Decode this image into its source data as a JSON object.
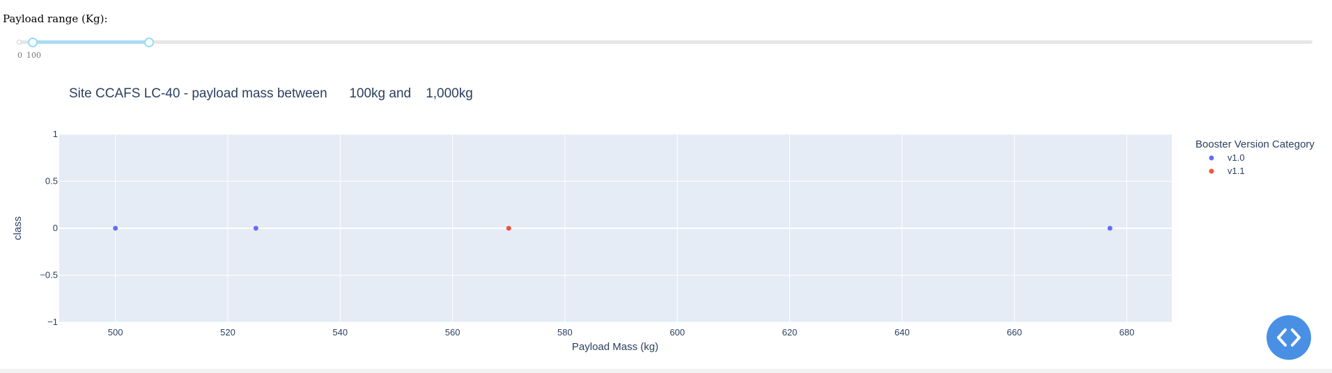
{
  "slider": {
    "label": "Payload range (Kg):",
    "marks": [
      "0",
      "100"
    ],
    "range": {
      "min": 0,
      "max": 10000,
      "low": 100,
      "high": 1000
    },
    "rail_color": "#e6e6e6",
    "track_color": "#abdbf4",
    "handle_color": "#96dbfa"
  },
  "chart_data": {
    "type": "scatter",
    "title": "Site CCAFS LC-40 - payload mass between      100kg and    1,000kg",
    "xlabel": "Payload Mass (kg)",
    "ylabel": "class",
    "xlim": [
      490,
      688
    ],
    "ylim": [
      -1,
      1
    ],
    "xticks": [
      "500",
      "520",
      "540",
      "560",
      "580",
      "600",
      "620",
      "640",
      "660",
      "680"
    ],
    "yticks": [
      "−1",
      "−0.5",
      "0",
      "0.5",
      "1"
    ],
    "grid": true,
    "legend": {
      "title": "Booster Version Category",
      "position": "right"
    },
    "series": [
      {
        "name": "v1.0",
        "color": "#636efa",
        "points": [
          [
            500,
            0
          ],
          [
            525,
            0
          ],
          [
            677,
            0
          ]
        ]
      },
      {
        "name": "v1.1",
        "color": "#ef553b",
        "points": [
          [
            570,
            0
          ]
        ]
      }
    ]
  },
  "fab": {
    "icon": "code-brackets-icon",
    "color": "#4990e5"
  }
}
